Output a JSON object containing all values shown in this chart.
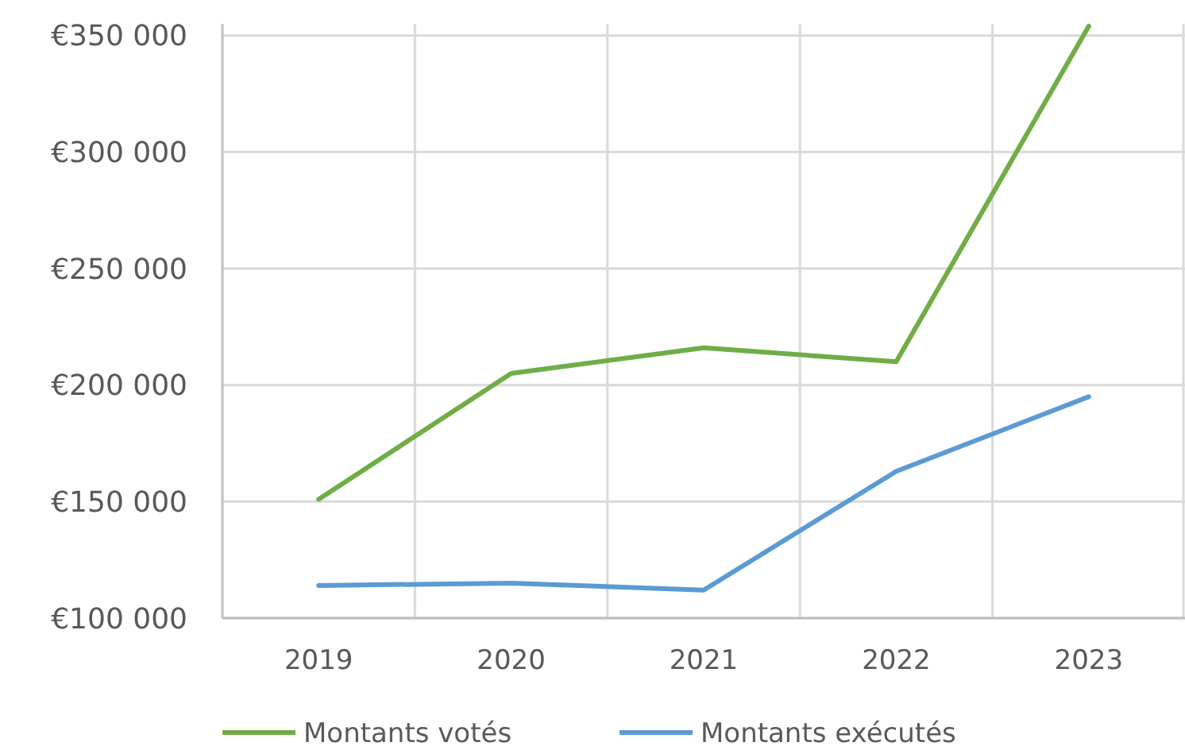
{
  "chart_data": {
    "type": "line",
    "categories": [
      "2019",
      "2020",
      "2021",
      "2022",
      "2023"
    ],
    "series": [
      {
        "name": "Montants votés",
        "color": "#70ad47",
        "values": [
          151000,
          205000,
          216000,
          210000,
          354000
        ]
      },
      {
        "name": "Montants exécutés",
        "color": "#5b9bd5",
        "values": [
          114000,
          115000,
          112000,
          163000,
          195000
        ]
      }
    ],
    "ylim": [
      100000,
      355000
    ],
    "yticks": [
      {
        "value": 100000,
        "label": "€100 000"
      },
      {
        "value": 150000,
        "label": "€150 000"
      },
      {
        "value": 200000,
        "label": "€200 000"
      },
      {
        "value": 250000,
        "label": "€250 000"
      },
      {
        "value": 300000,
        "label": "€300 000"
      },
      {
        "value": 350000,
        "label": "€350 000"
      }
    ],
    "grid": true,
    "legend": "bottom",
    "marker": "none",
    "line_style": "solid"
  }
}
